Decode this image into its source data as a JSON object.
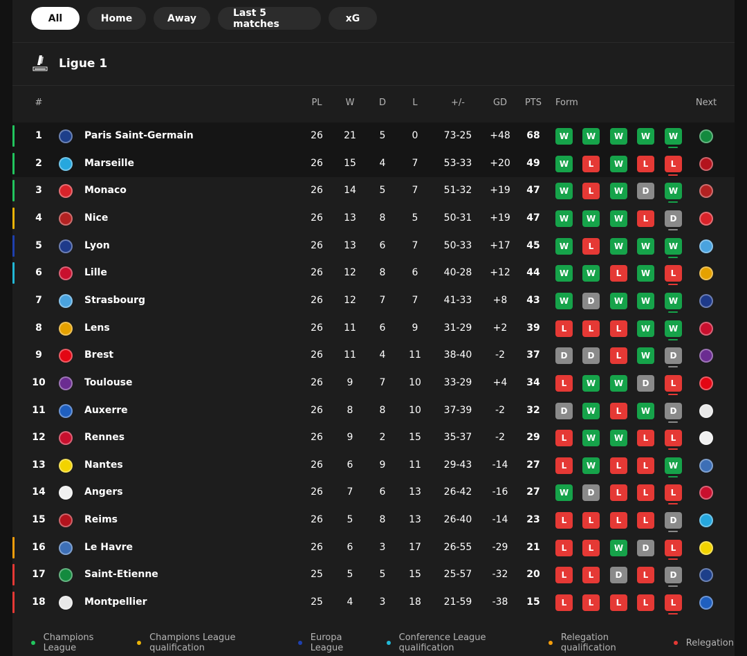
{
  "filters": [
    {
      "label": "All",
      "active": true
    },
    {
      "label": "Home",
      "active": false
    },
    {
      "label": "Away",
      "active": false
    },
    {
      "label": "Last 5 matches",
      "active": false
    },
    {
      "label": "xG",
      "active": false
    }
  ],
  "league": {
    "name": "Ligue 1"
  },
  "headers": {
    "rank": "#",
    "pl": "PL",
    "w": "W",
    "d": "D",
    "l": "L",
    "goals": "+/-",
    "gd": "GD",
    "pts": "PTS",
    "form": "Form",
    "next": "Next"
  },
  "zone_colors": {
    "cl": "#22c55e",
    "clq": "#eab308",
    "el": "#1e40af",
    "ecl": "#22b8d6",
    "rq": "#f59e0b",
    "rel": "#e53935"
  },
  "rows": [
    {
      "rank": "1",
      "team": "Paris Saint-Germain",
      "crest": "#1d3f8a",
      "pl": "26",
      "w": "21",
      "d": "5",
      "l": "0",
      "goals": "73-25",
      "gd": "+48",
      "pts": "68",
      "form": [
        "W",
        "W",
        "W",
        "W",
        "W"
      ],
      "next": "#138a3e",
      "zone": "cl",
      "highlight": true
    },
    {
      "rank": "2",
      "team": "Marseille",
      "crest": "#26a7de",
      "pl": "26",
      "w": "15",
      "d": "4",
      "l": "7",
      "goals": "53-33",
      "gd": "+20",
      "pts": "49",
      "form": [
        "W",
        "L",
        "W",
        "L",
        "L"
      ],
      "next": "#b3131d",
      "zone": "cl",
      "highlight": true
    },
    {
      "rank": "3",
      "team": "Monaco",
      "crest": "#d8232a",
      "pl": "26",
      "w": "14",
      "d": "5",
      "l": "7",
      "goals": "51-32",
      "gd": "+19",
      "pts": "47",
      "form": [
        "W",
        "L",
        "W",
        "D",
        "W"
      ],
      "next": "#b22222",
      "zone": "cl",
      "highlight": false
    },
    {
      "rank": "4",
      "team": "Nice",
      "crest": "#b22222",
      "pl": "26",
      "w": "13",
      "d": "8",
      "l": "5",
      "goals": "50-31",
      "gd": "+19",
      "pts": "47",
      "form": [
        "W",
        "W",
        "W",
        "L",
        "D"
      ],
      "next": "#d8232a",
      "zone": "clq",
      "highlight": false
    },
    {
      "rank": "5",
      "team": "Lyon",
      "crest": "#1e3a8a",
      "pl": "26",
      "w": "13",
      "d": "6",
      "l": "7",
      "goals": "50-33",
      "gd": "+17",
      "pts": "45",
      "form": [
        "W",
        "L",
        "W",
        "W",
        "W"
      ],
      "next": "#4aa3df",
      "zone": "el",
      "highlight": false
    },
    {
      "rank": "6",
      "team": "Lille",
      "crest": "#c8102e",
      "pl": "26",
      "w": "12",
      "d": "8",
      "l": "6",
      "goals": "40-28",
      "gd": "+12",
      "pts": "44",
      "form": [
        "W",
        "W",
        "L",
        "W",
        "L"
      ],
      "next": "#e5a100",
      "zone": "ecl",
      "highlight": false
    },
    {
      "rank": "7",
      "team": "Strasbourg",
      "crest": "#4aa3df",
      "pl": "26",
      "w": "12",
      "d": "7",
      "l": "7",
      "goals": "41-33",
      "gd": "+8",
      "pts": "43",
      "form": [
        "W",
        "D",
        "W",
        "W",
        "W"
      ],
      "next": "#1e3a8a",
      "zone": "",
      "highlight": false
    },
    {
      "rank": "8",
      "team": "Lens",
      "crest": "#e5a100",
      "pl": "26",
      "w": "11",
      "d": "6",
      "l": "9",
      "goals": "31-29",
      "gd": "+2",
      "pts": "39",
      "form": [
        "L",
        "L",
        "L",
        "W",
        "W"
      ],
      "next": "#c8102e",
      "zone": "",
      "highlight": false
    },
    {
      "rank": "9",
      "team": "Brest",
      "crest": "#e30613",
      "pl": "26",
      "w": "11",
      "d": "4",
      "l": "11",
      "goals": "38-40",
      "gd": "-2",
      "pts": "37",
      "form": [
        "D",
        "D",
        "L",
        "W",
        "D"
      ],
      "next": "#6b2c91",
      "zone": "",
      "highlight": false
    },
    {
      "rank": "10",
      "team": "Toulouse",
      "crest": "#6b2c91",
      "pl": "26",
      "w": "9",
      "d": "7",
      "l": "10",
      "goals": "33-29",
      "gd": "+4",
      "pts": "34",
      "form": [
        "L",
        "W",
        "W",
        "D",
        "L"
      ],
      "next": "#e30613",
      "zone": "",
      "highlight": false
    },
    {
      "rank": "11",
      "team": "Auxerre",
      "crest": "#1f5fbf",
      "pl": "26",
      "w": "8",
      "d": "8",
      "l": "10",
      "goals": "37-39",
      "gd": "-2",
      "pts": "32",
      "form": [
        "D",
        "W",
        "L",
        "W",
        "D"
      ],
      "next": "#e8e8e8",
      "zone": "",
      "highlight": false
    },
    {
      "rank": "12",
      "team": "Rennes",
      "crest": "#c8102e",
      "pl": "26",
      "w": "9",
      "d": "2",
      "l": "15",
      "goals": "35-37",
      "gd": "-2",
      "pts": "29",
      "form": [
        "L",
        "W",
        "W",
        "L",
        "L"
      ],
      "next": "#f0f0f0",
      "zone": "",
      "highlight": false
    },
    {
      "rank": "13",
      "team": "Nantes",
      "crest": "#f2d300",
      "pl": "26",
      "w": "6",
      "d": "9",
      "l": "11",
      "goals": "29-43",
      "gd": "-14",
      "pts": "27",
      "form": [
        "L",
        "W",
        "L",
        "L",
        "W"
      ],
      "next": "#3d6fb6",
      "zone": "",
      "highlight": false
    },
    {
      "rank": "14",
      "team": "Angers",
      "crest": "#f0f0f0",
      "pl": "26",
      "w": "7",
      "d": "6",
      "l": "13",
      "goals": "26-42",
      "gd": "-16",
      "pts": "27",
      "form": [
        "W",
        "D",
        "L",
        "L",
        "L"
      ],
      "next": "#c8102e",
      "zone": "",
      "highlight": false
    },
    {
      "rank": "15",
      "team": "Reims",
      "crest": "#b3131d",
      "pl": "26",
      "w": "5",
      "d": "8",
      "l": "13",
      "goals": "26-40",
      "gd": "-14",
      "pts": "23",
      "form": [
        "L",
        "L",
        "L",
        "L",
        "D"
      ],
      "next": "#26a7de",
      "zone": "",
      "highlight": false
    },
    {
      "rank": "16",
      "team": "Le Havre",
      "crest": "#3d6fb6",
      "pl": "26",
      "w": "6",
      "d": "3",
      "l": "17",
      "goals": "26-55",
      "gd": "-29",
      "pts": "21",
      "form": [
        "L",
        "L",
        "W",
        "D",
        "L"
      ],
      "next": "#f2d300",
      "zone": "rq",
      "highlight": false
    },
    {
      "rank": "17",
      "team": "Saint-Etienne",
      "crest": "#138a3e",
      "pl": "25",
      "w": "5",
      "d": "5",
      "l": "15",
      "goals": "25-57",
      "gd": "-32",
      "pts": "20",
      "form": [
        "L",
        "L",
        "D",
        "L",
        "D"
      ],
      "next": "#1d3f8a",
      "zone": "rel",
      "highlight": false
    },
    {
      "rank": "18",
      "team": "Montpellier",
      "crest": "#e8e8e8",
      "pl": "25",
      "w": "4",
      "d": "3",
      "l": "18",
      "goals": "21-59",
      "gd": "-38",
      "pts": "15",
      "form": [
        "L",
        "L",
        "L",
        "L",
        "L"
      ],
      "next": "#1f5fbf",
      "zone": "rel",
      "highlight": false
    }
  ],
  "legend": [
    {
      "label": "Champions League",
      "zone": "cl"
    },
    {
      "label": "Champions League qualification",
      "zone": "clq"
    },
    {
      "label": "Europa League",
      "zone": "el"
    },
    {
      "label": "Conference League qualification",
      "zone": "ecl"
    },
    {
      "label": "Relegation qualification",
      "zone": "rq"
    },
    {
      "label": "Relegation",
      "zone": "rel"
    }
  ]
}
